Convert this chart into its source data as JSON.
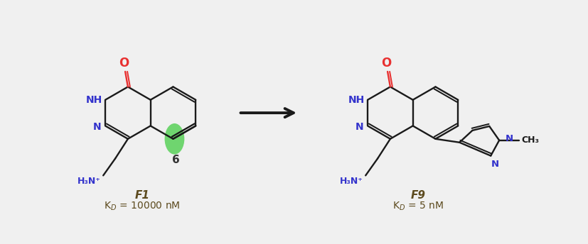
{
  "background_color": "#f0f0f0",
  "bond_color": "#1a1a1a",
  "red_color": "#e83030",
  "blue_color": "#3333cc",
  "green_color": "#44cc44",
  "green_alpha": 0.75,
  "dark_color": "#333333",
  "label_color": "#5c4a1e",
  "arrow_color": "#1a1a1a",
  "f1_label": "F1",
  "f1_kd": "K$_D$ = 10000 nM",
  "f9_label": "F9",
  "f9_kd": "K$_D$ = 5 nM",
  "figsize": [
    8.27,
    3.44
  ],
  "dpi": 100
}
